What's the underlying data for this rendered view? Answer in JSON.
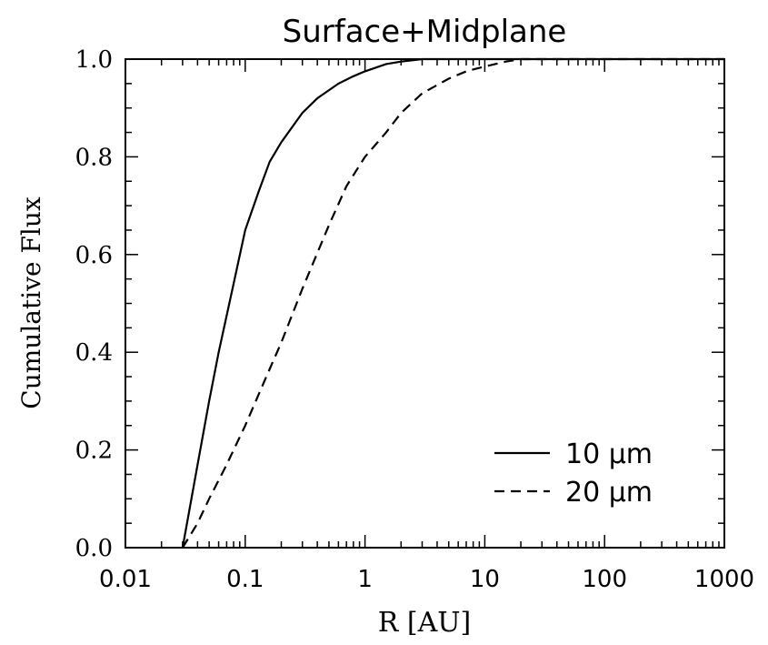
{
  "chart_data": {
    "type": "line",
    "title": "Surface+Midplane",
    "xlabel": "R [AU]",
    "ylabel": "Cumulative Flux",
    "xscale": "log",
    "xlim": [
      0.01,
      1000
    ],
    "ylim": [
      0,
      1
    ],
    "xticks": [
      0.01,
      0.1,
      1,
      10,
      100,
      1000
    ],
    "xtick_labels": [
      "0.01",
      "0.1",
      "1",
      "10",
      "100",
      "1000"
    ],
    "yticks": [
      0,
      0.2,
      0.4,
      0.6,
      0.8,
      1.0
    ],
    "ytick_labels": [
      "0.0",
      "0.2",
      "0.4",
      "0.6",
      "0.8",
      "1.0"
    ],
    "legend_position": "bottom-right",
    "grid": false,
    "series": [
      {
        "name": "10 μm",
        "style": "solid",
        "color": "#000000",
        "x": [
          0.03,
          0.04,
          0.05,
          0.06,
          0.08,
          0.1,
          0.13,
          0.16,
          0.2,
          0.3,
          0.4,
          0.6,
          0.8,
          1.0,
          1.5,
          2.0,
          3.0,
          5.0,
          10,
          100,
          1000
        ],
        "y": [
          0.0,
          0.17,
          0.3,
          0.4,
          0.54,
          0.65,
          0.73,
          0.79,
          0.83,
          0.89,
          0.92,
          0.95,
          0.965,
          0.975,
          0.99,
          0.995,
          1.0,
          1.0,
          1.0,
          1.0,
          1.0
        ]
      },
      {
        "name": "20 μm",
        "style": "dashed",
        "color": "#000000",
        "x": [
          0.03,
          0.04,
          0.05,
          0.07,
          0.1,
          0.15,
          0.2,
          0.3,
          0.5,
          0.7,
          1.0,
          1.5,
          2.0,
          3.0,
          5.0,
          7.0,
          10,
          15,
          20,
          30,
          100,
          1000
        ],
        "y": [
          0.0,
          0.05,
          0.1,
          0.17,
          0.25,
          0.35,
          0.42,
          0.53,
          0.66,
          0.74,
          0.8,
          0.85,
          0.89,
          0.93,
          0.96,
          0.975,
          0.985,
          0.995,
          1.0,
          1.0,
          1.0,
          1.0
        ]
      }
    ]
  }
}
